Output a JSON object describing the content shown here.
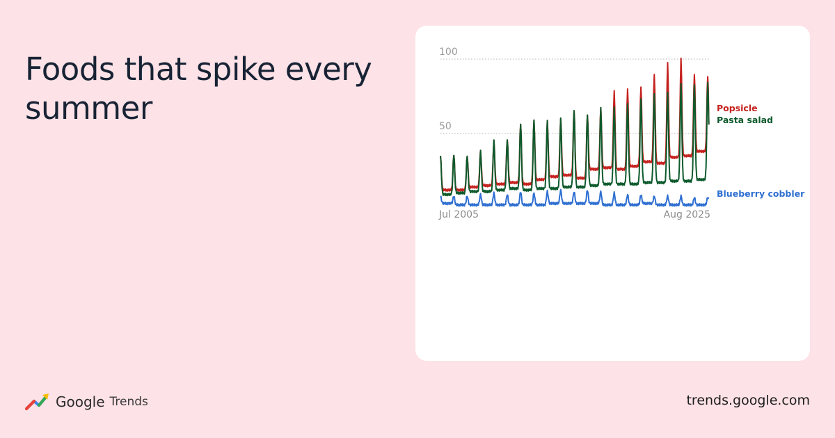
{
  "headline": "Foods that spike every summer",
  "brand": {
    "name": "Google",
    "product": "Trends",
    "icon": "google-trends-logo-icon"
  },
  "footer_url": "trends.google.com",
  "colors": {
    "background": "#fde2e7",
    "popsicle": "#c5221f",
    "pasta_salad": "#0d5a2c",
    "blueberry_cobbler": "#2f6fd1"
  },
  "chart_data": {
    "type": "line",
    "title": "",
    "xlabel": "",
    "ylabel": "",
    "ylim": [
      0,
      100
    ],
    "y_ticks": [
      "100",
      "50"
    ],
    "y_tick_values": [
      100,
      50
    ],
    "x_tick_labels": [
      "Jul 2005",
      "Aug 2025"
    ],
    "x_range": [
      "2005-07",
      "2025-08"
    ],
    "grid": "dotted horizontal at 50 and 100",
    "legend": "right-side labels at series ends",
    "series": [
      {
        "name": "Popsicle",
        "color": "#c5221f",
        "summer_peaks": [
          35,
          36,
          35,
          38,
          45,
          46,
          57,
          59,
          58,
          60,
          66,
          63,
          67,
          78,
          80,
          82,
          90,
          97,
          100,
          90,
          89
        ],
        "winter_lows": [
          12,
          12,
          14,
          15,
          16,
          17,
          16,
          19,
          21,
          22,
          20,
          26,
          27,
          26,
          28,
          31,
          30,
          34,
          35,
          38,
          42
        ],
        "last_value": 56
      },
      {
        "name": "Pasta salad",
        "color": "#0d5a2c",
        "summer_peaks": [
          35,
          36,
          35,
          38,
          45,
          46,
          57,
          59,
          58,
          60,
          66,
          63,
          67,
          67,
          70,
          74,
          77,
          77,
          83,
          83,
          85
        ],
        "winter_lows": [
          9,
          10,
          11,
          11,
          12,
          13,
          12,
          13,
          13,
          14,
          14,
          15,
          16,
          16,
          16,
          17,
          17,
          18,
          18,
          19,
          24
        ],
        "last_value": 56
      },
      {
        "name": "Blueberry cobbler",
        "color": "#2f6fd1",
        "summer_peaks": [
          8,
          8,
          8,
          9,
          10,
          9,
          11,
          10,
          11,
          12,
          11,
          12,
          11,
          10,
          9,
          9,
          8,
          8,
          8,
          7,
          7
        ],
        "winter_lows": [
          3,
          2,
          2,
          2,
          2,
          2,
          2,
          2,
          3,
          3,
          3,
          3,
          2,
          2,
          2,
          3,
          2,
          2,
          2,
          2,
          2
        ],
        "last_value": 7
      }
    ]
  }
}
